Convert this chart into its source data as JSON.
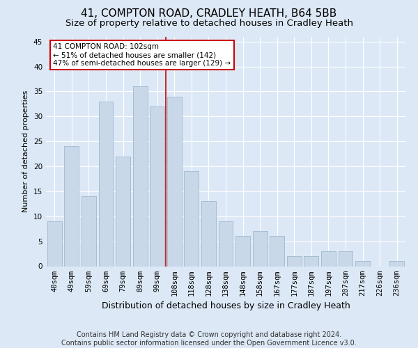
{
  "title": "41, COMPTON ROAD, CRADLEY HEATH, B64 5BB",
  "subtitle": "Size of property relative to detached houses in Cradley Heath",
  "xlabel": "Distribution of detached houses by size in Cradley Heath",
  "ylabel": "Number of detached properties",
  "footer_line1": "Contains HM Land Registry data © Crown copyright and database right 2024.",
  "footer_line2": "Contains public sector information licensed under the Open Government Licence v3.0.",
  "categories": [
    "40sqm",
    "49sqm",
    "59sqm",
    "69sqm",
    "79sqm",
    "89sqm",
    "99sqm",
    "108sqm",
    "118sqm",
    "128sqm",
    "138sqm",
    "148sqm",
    "158sqm",
    "167sqm",
    "177sqm",
    "187sqm",
    "197sqm",
    "207sqm",
    "217sqm",
    "226sqm",
    "236sqm"
  ],
  "values": [
    9,
    24,
    14,
    33,
    22,
    36,
    32,
    34,
    19,
    13,
    9,
    6,
    7,
    6,
    2,
    2,
    3,
    3,
    1,
    0,
    1
  ],
  "bar_color": "#c8d8e8",
  "bar_edge_color": "#a0b8d0",
  "vline_x_index": 6.5,
  "vline_color": "#cc0000",
  "annotation_text": "41 COMPTON ROAD: 102sqm\n← 51% of detached houses are smaller (142)\n47% of semi-detached houses are larger (129) →",
  "annotation_box_color": "#ffffff",
  "annotation_box_edge": "#cc0000",
  "ylim": [
    0,
    46
  ],
  "yticks": [
    0,
    5,
    10,
    15,
    20,
    25,
    30,
    35,
    40,
    45
  ],
  "background_color": "#dce8f5",
  "plot_background": "#dce8f5",
  "grid_color": "#ffffff",
  "title_fontsize": 11,
  "subtitle_fontsize": 9.5,
  "xlabel_fontsize": 9,
  "ylabel_fontsize": 8,
  "tick_fontsize": 7.5,
  "footer_fontsize": 7
}
